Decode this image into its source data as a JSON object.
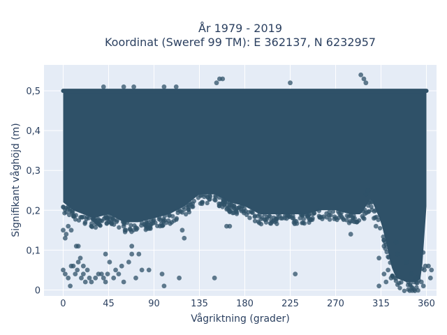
{
  "chart_data": {
    "type": "scatter",
    "title_line1": "År 1979 - 2019",
    "title_line2": "Koordinat (Sweref 99 TM): E 362137, N 6232957",
    "xlabel": "Vågriktning (grader)",
    "ylabel": "Signifikant våghöjd (m)",
    "xlim": [
      -19,
      370
    ],
    "ylim": [
      -0.015,
      0.565
    ],
    "x_ticks": [
      0,
      45,
      90,
      135,
      180,
      225,
      270,
      315,
      360
    ],
    "x_tick_labels": [
      "0",
      "45",
      "90",
      "135",
      "180",
      "225",
      "270",
      "315",
      "360"
    ],
    "y_ticks": [
      0,
      0.1,
      0.2,
      0.3,
      0.4,
      0.5
    ],
    "y_tick_labels": [
      "0",
      "0,1",
      "0,2",
      "0,3",
      "0,4",
      "0,5"
    ],
    "grid": true,
    "marker_color": "#2f5168",
    "background_color": "#e5ecf6",
    "dense_band": {
      "x_range": [
        0,
        360
      ],
      "y_max": 0.5,
      "lower_envelope": [
        [
          0,
          0.22
        ],
        [
          10,
          0.2
        ],
        [
          20,
          0.19
        ],
        [
          30,
          0.18
        ],
        [
          45,
          0.19
        ],
        [
          60,
          0.17
        ],
        [
          75,
          0.17
        ],
        [
          90,
          0.18
        ],
        [
          105,
          0.19
        ],
        [
          120,
          0.21
        ],
        [
          135,
          0.24
        ],
        [
          150,
          0.24
        ],
        [
          165,
          0.22
        ],
        [
          180,
          0.21
        ],
        [
          195,
          0.19
        ],
        [
          210,
          0.19
        ],
        [
          225,
          0.19
        ],
        [
          240,
          0.19
        ],
        [
          255,
          0.2
        ],
        [
          270,
          0.2
        ],
        [
          285,
          0.19
        ],
        [
          295,
          0.19
        ],
        [
          305,
          0.23
        ],
        [
          315,
          0.17
        ],
        [
          320,
          0.12
        ],
        [
          325,
          0.06
        ],
        [
          330,
          0.03
        ],
        [
          340,
          0.02
        ],
        [
          350,
          0.02
        ],
        [
          355,
          0.03
        ],
        [
          360,
          0.21
        ]
      ]
    },
    "points": [
      [
        295,
        0.54
      ],
      [
        298,
        0.53
      ],
      [
        300,
        0.52
      ],
      [
        155,
        0.53
      ],
      [
        158,
        0.53
      ],
      [
        152,
        0.52
      ],
      [
        225,
        0.52
      ],
      [
        112,
        0.51
      ],
      [
        100,
        0.51
      ],
      [
        60,
        0.51
      ],
      [
        70,
        0.51
      ],
      [
        40,
        0.51
      ],
      [
        0,
        0.15
      ],
      [
        3,
        0.14
      ],
      [
        5,
        0.16
      ],
      [
        2,
        0.13
      ],
      [
        8,
        0.15
      ],
      [
        0,
        0.05
      ],
      [
        2,
        0.04
      ],
      [
        5,
        0.03
      ],
      [
        7,
        0.01
      ],
      [
        10,
        0.06
      ],
      [
        12,
        0.04
      ],
      [
        14,
        0.05
      ],
      [
        15,
        0.07
      ],
      [
        17,
        0.08
      ],
      [
        18,
        0.03
      ],
      [
        20,
        0.04
      ],
      [
        22,
        0.02
      ],
      [
        24,
        0.05
      ],
      [
        26,
        0.03
      ],
      [
        28,
        0.02
      ],
      [
        32,
        0.03
      ],
      [
        35,
        0.04
      ],
      [
        38,
        0.04
      ],
      [
        40,
        0.03
      ],
      [
        42,
        0.02
      ],
      [
        44,
        0.04
      ],
      [
        46,
        0.07
      ],
      [
        50,
        0.03
      ],
      [
        52,
        0.05
      ],
      [
        55,
        0.04
      ],
      [
        58,
        0.06
      ],
      [
        60,
        0.02
      ],
      [
        65,
        0.07
      ],
      [
        72,
        0.03
      ],
      [
        78,
        0.05
      ],
      [
        85,
        0.05
      ],
      [
        98,
        0.04
      ],
      [
        100,
        0.01
      ],
      [
        115,
        0.03
      ],
      [
        150,
        0.03
      ],
      [
        230,
        0.04
      ],
      [
        13,
        0.11
      ],
      [
        15,
        0.11
      ],
      [
        20,
        0.06
      ],
      [
        8,
        0.06
      ],
      [
        42,
        0.09
      ],
      [
        60,
        0.16
      ],
      [
        62,
        0.15
      ],
      [
        68,
        0.11
      ],
      [
        68,
        0.09
      ],
      [
        75,
        0.09
      ],
      [
        120,
        0.13
      ],
      [
        118,
        0.15
      ],
      [
        165,
        0.16
      ],
      [
        162,
        0.16
      ],
      [
        285,
        0.14
      ],
      [
        310,
        0.16
      ],
      [
        313,
        0.08
      ],
      [
        318,
        0.11
      ],
      [
        330,
        0.12
      ],
      [
        331,
        0.09
      ],
      [
        322,
        0.05
      ],
      [
        318,
        0.04
      ],
      [
        313,
        0.01
      ],
      [
        320,
        0.02
      ],
      [
        325,
        0.03
      ],
      [
        340,
        0.07
      ],
      [
        345,
        0.04
      ],
      [
        350,
        0.03
      ],
      [
        355,
        0.02
      ],
      [
        357,
        0.01
      ],
      [
        358,
        0.05
      ],
      [
        359,
        0.06
      ],
      [
        362,
        0.06
      ],
      [
        364,
        0.03
      ],
      [
        365,
        0.05
      ],
      [
        300,
        0.24
      ],
      [
        305,
        0.22
      ],
      [
        308,
        0.18
      ],
      [
        302,
        0.25
      ],
      [
        310,
        0.2
      ]
    ]
  }
}
